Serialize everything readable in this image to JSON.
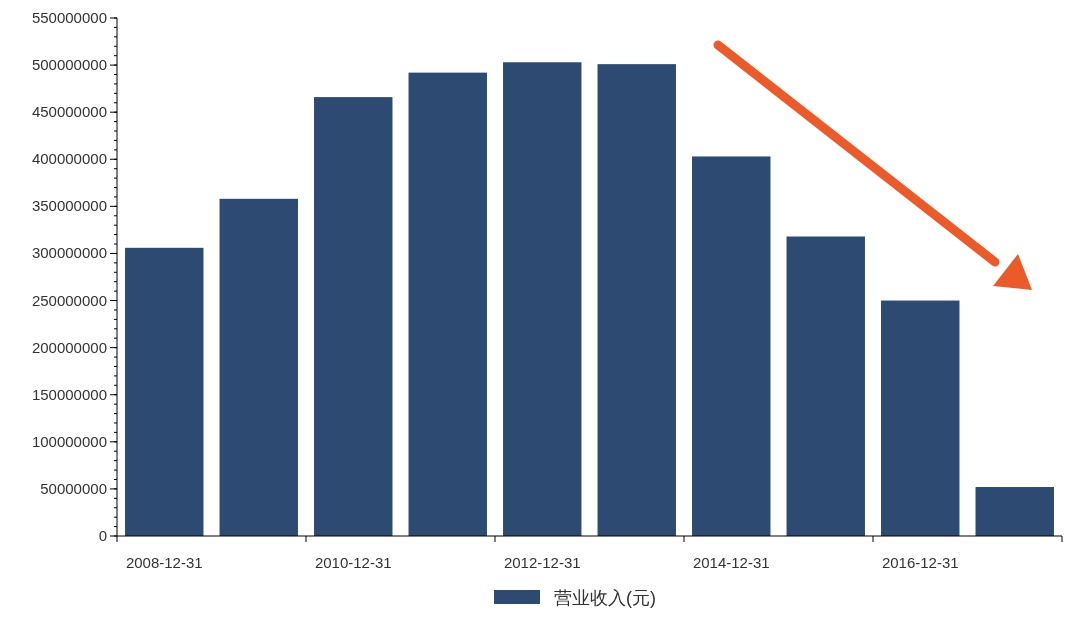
{
  "chart_data": {
    "type": "bar",
    "categories": [
      "2008-12-31",
      null,
      "2010-12-31",
      null,
      "2012-12-31",
      null,
      "2014-12-31",
      null,
      "2016-12-31",
      null
    ],
    "series": [
      {
        "name": "营业收入(元)",
        "color": "#2c4a72",
        "values": [
          306000000,
          358000000,
          466000000,
          492000000,
          503000000,
          501000000,
          403000000,
          318000000,
          250000000,
          52000000
        ]
      }
    ],
    "ylim": [
      0,
      550000000
    ],
    "yticks": [
      0,
      50000000,
      100000000,
      150000000,
      200000000,
      250000000,
      300000000,
      350000000,
      400000000,
      450000000,
      500000000,
      550000000
    ],
    "grid": false,
    "legend": "bottom"
  }
}
